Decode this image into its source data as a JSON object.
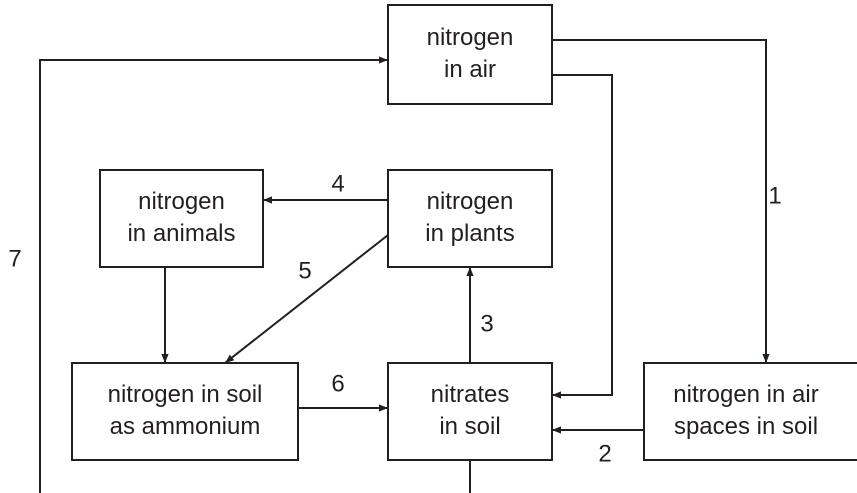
{
  "nodes": [
    {
      "lines": [
        "nitrogen",
        "in air"
      ]
    },
    {
      "lines": [
        "nitrogen",
        "in animals"
      ]
    },
    {
      "lines": [
        "nitrogen",
        "in plants"
      ]
    },
    {
      "lines": [
        "nitrogen in soil",
        "as ammonium"
      ]
    },
    {
      "lines": [
        "nitrates",
        "in soil"
      ]
    },
    {
      "lines": [
        "nitrogen in air",
        "spaces in soil"
      ]
    }
  ],
  "edges": [
    {
      "label": "1"
    },
    {
      "label": "2"
    },
    {
      "label": "3"
    },
    {
      "label": "4"
    },
    {
      "label": "5"
    },
    {
      "label": "6"
    },
    {
      "label": "7"
    }
  ]
}
